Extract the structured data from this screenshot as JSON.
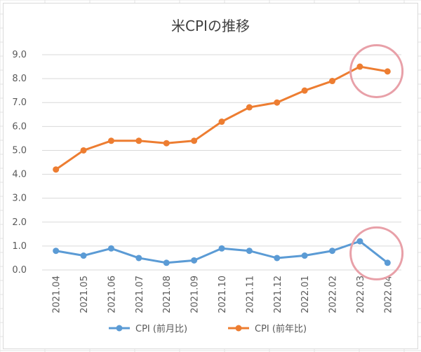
{
  "chart_data": {
    "type": "line",
    "title": "米CPIの推移",
    "xlabel": "",
    "ylabel": "",
    "categories": [
      "2021.04",
      "2021.05",
      "2021.06",
      "2021.07",
      "2021.08",
      "2021.09",
      "2021.10",
      "2021.11",
      "2021.12",
      "2022.01",
      "2022.02",
      "2022.03",
      "2022.04"
    ],
    "ylim": [
      0,
      9
    ],
    "yticks": [
      "0.0",
      "1.0",
      "2.0",
      "3.0",
      "4.0",
      "5.0",
      "6.0",
      "7.0",
      "8.0",
      "9.0"
    ],
    "grid": true,
    "legend_position": "bottom",
    "series": [
      {
        "name": "CPI (前月比)",
        "color": "#5b9bd5",
        "values": [
          0.8,
          0.6,
          0.9,
          0.5,
          0.3,
          0.4,
          0.9,
          0.8,
          0.5,
          0.6,
          0.8,
          1.2,
          0.3
        ]
      },
      {
        "name": "CPI (前年比)",
        "color": "#ed7d31",
        "values": [
          4.2,
          5.0,
          5.4,
          5.4,
          5.3,
          5.4,
          6.2,
          6.8,
          7.0,
          7.5,
          7.9,
          8.5,
          8.3
        ]
      }
    ],
    "highlight_color": "#e8a0a8"
  }
}
